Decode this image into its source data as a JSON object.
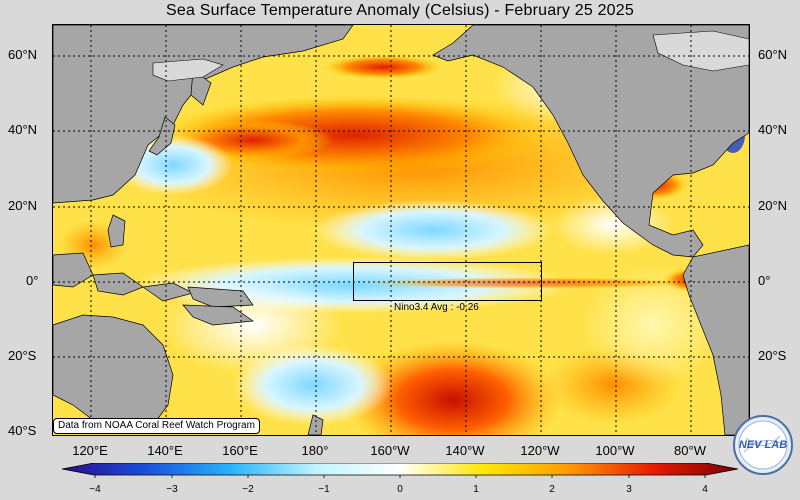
{
  "title": "Sea Surface Temperature Anomaly (Celsius) - February 25 2025",
  "lat_labels": [
    "60°N",
    "40°N",
    "20°N",
    "0°",
    "20°S",
    "40°S"
  ],
  "lon_labels": [
    "120°E",
    "140°E",
    "160°E",
    "180°",
    "160°W",
    "140°W",
    "120°W",
    "100°W",
    "80°W"
  ],
  "region_label": "Nino3.4 Avg : -0.26",
  "credit": "Data from NOAA Coral Reef Watch Program",
  "colorbar": {
    "ticks": [
      "−4",
      "−3",
      "−2",
      "−1",
      "0",
      "1",
      "2",
      "3",
      "4"
    ],
    "range": [
      -4,
      4
    ],
    "colors": [
      "#2a0a8a",
      "#1a50e0",
      "#27b4ff",
      "#bff4ff",
      "#ffffff",
      "#ffe800",
      "#ff9a00",
      "#e81a00",
      "#7a0000"
    ]
  },
  "logo_text": "NEV LAB",
  "colors": {
    "land": "#a6a6a6",
    "ice": "#d9d9d9",
    "background": "#d9d9d9"
  }
}
